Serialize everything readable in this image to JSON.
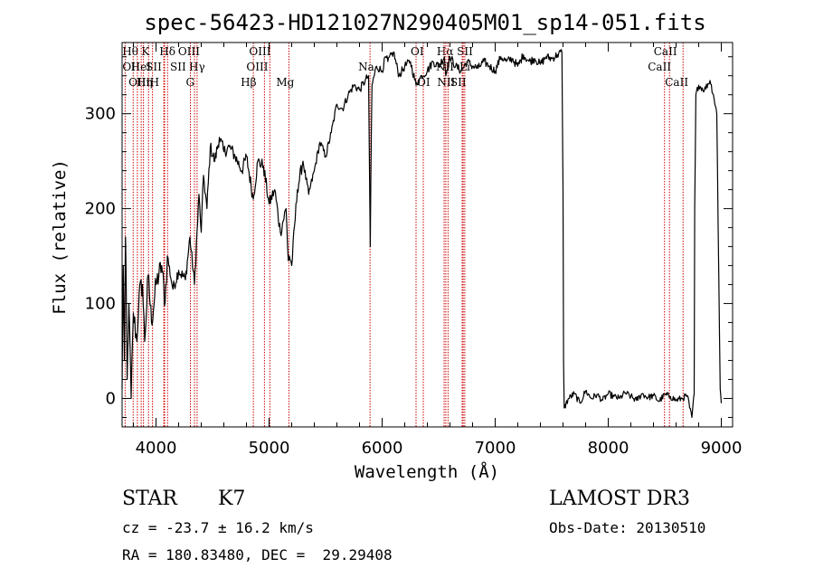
{
  "chart_data": {
    "type": "line",
    "title": "spec-56423-HD121027N290405M01_sp14-051.fits",
    "xlabel": "Wavelength (Å)",
    "ylabel": "Flux (relative)",
    "xlim": [
      3700,
      9100
    ],
    "ylim": [
      -30,
      375
    ],
    "xticks": [
      4000,
      5000,
      6000,
      7000,
      8000,
      9000
    ],
    "yticks": [
      0,
      100,
      200,
      300
    ],
    "anchors": [
      [
        3700,
        10
      ],
      [
        3710,
        140
      ],
      [
        3720,
        40
      ],
      [
        3730,
        170
      ],
      [
        3745,
        20
      ],
      [
        3760,
        100
      ],
      [
        3780,
        0
      ],
      [
        3800,
        90
      ],
      [
        3830,
        60
      ],
      [
        3850,
        110
      ],
      [
        3880,
        120
      ],
      [
        3900,
        60
      ],
      [
        3930,
        130
      ],
      [
        3960,
        80
      ],
      [
        4000,
        120
      ],
      [
        4050,
        140
      ],
      [
        4080,
        100
      ],
      [
        4100,
        150
      ],
      [
        4150,
        115
      ],
      [
        4200,
        135
      ],
      [
        4260,
        125
      ],
      [
        4300,
        170
      ],
      [
        4340,
        120
      ],
      [
        4380,
        215
      ],
      [
        4400,
        175
      ],
      [
        4420,
        235
      ],
      [
        4450,
        200
      ],
      [
        4480,
        265
      ],
      [
        4520,
        250
      ],
      [
        4560,
        275
      ],
      [
        4600,
        260
      ],
      [
        4650,
        265
      ],
      [
        4700,
        255
      ],
      [
        4760,
        240
      ],
      [
        4800,
        255
      ],
      [
        4860,
        210
      ],
      [
        4900,
        250
      ],
      [
        4950,
        245
      ],
      [
        5000,
        205
      ],
      [
        5050,
        220
      ],
      [
        5100,
        175
      ],
      [
        5150,
        200
      ],
      [
        5170,
        145
      ],
      [
        5180,
        150
      ],
      [
        5200,
        140
      ],
      [
        5250,
        220
      ],
      [
        5300,
        250
      ],
      [
        5350,
        215
      ],
      [
        5400,
        240
      ],
      [
        5450,
        270
      ],
      [
        5500,
        255
      ],
      [
        5550,
        280
      ],
      [
        5600,
        310
      ],
      [
        5650,
        305
      ],
      [
        5700,
        320
      ],
      [
        5750,
        330
      ],
      [
        5800,
        325
      ],
      [
        5850,
        335
      ],
      [
        5880,
        340
      ],
      [
        5890,
        215
      ],
      [
        5895,
        160
      ],
      [
        5900,
        230
      ],
      [
        5910,
        330
      ],
      [
        5950,
        350
      ],
      [
        6000,
        345
      ],
      [
        6030,
        360
      ],
      [
        6050,
        355
      ],
      [
        6100,
        365
      ],
      [
        6150,
        340
      ],
      [
        6200,
        350
      ],
      [
        6250,
        355
      ],
      [
        6300,
        330
      ],
      [
        6350,
        340
      ],
      [
        6400,
        345
      ],
      [
        6450,
        355
      ],
      [
        6500,
        350
      ],
      [
        6550,
        360
      ],
      [
        6563,
        340
      ],
      [
        6600,
        360
      ],
      [
        6650,
        350
      ],
      [
        6700,
        345
      ],
      [
        6750,
        355
      ],
      [
        6800,
        350
      ],
      [
        6850,
        348
      ],
      [
        6900,
        355
      ],
      [
        6950,
        350
      ],
      [
        7000,
        345
      ],
      [
        7050,
        360
      ],
      [
        7100,
        355
      ],
      [
        7150,
        358
      ],
      [
        7200,
        350
      ],
      [
        7250,
        362
      ],
      [
        7300,
        355
      ],
      [
        7350,
        358
      ],
      [
        7400,
        352
      ],
      [
        7450,
        360
      ],
      [
        7500,
        358
      ],
      [
        7550,
        362
      ],
      [
        7590,
        365
      ],
      [
        7600,
        220
      ],
      [
        7605,
        40
      ],
      [
        7610,
        -10
      ],
      [
        7650,
        0
      ],
      [
        7700,
        5
      ],
      [
        7750,
        -5
      ],
      [
        7800,
        8
      ],
      [
        7850,
        0
      ],
      [
        7900,
        4
      ],
      [
        7950,
        -2
      ],
      [
        8000,
        5
      ],
      [
        8050,
        2
      ],
      [
        8100,
        0
      ],
      [
        8150,
        6
      ],
      [
        8200,
        2
      ],
      [
        8250,
        -2
      ],
      [
        8300,
        5
      ],
      [
        8350,
        1
      ],
      [
        8400,
        3
      ],
      [
        8450,
        -3
      ],
      [
        8500,
        4
      ],
      [
        8550,
        2
      ],
      [
        8600,
        -2
      ],
      [
        8650,
        0
      ],
      [
        8700,
        3
      ],
      [
        8720,
        -10
      ],
      [
        8740,
        -20
      ],
      [
        8760,
        5
      ],
      [
        8765,
        200
      ],
      [
        8775,
        320
      ],
      [
        8800,
        330
      ],
      [
        8850,
        325
      ],
      [
        8900,
        335
      ],
      [
        8930,
        320
      ],
      [
        8960,
        300
      ],
      [
        8990,
        10
      ],
      [
        9000,
        -5
      ]
    ],
    "spectral_lines": [
      {
        "label": "Hθ",
        "wave": 3798,
        "row": 0,
        "offset": -12
      },
      {
        "label": "OII",
        "wave": 3727,
        "row": 1,
        "offset": -3
      },
      {
        "label": "OIII",
        "wave": 3869,
        "row": 2,
        "offset": -14
      },
      {
        "label": "K",
        "wave": 3934,
        "row": 0,
        "offset": -8
      },
      {
        "label": "HeI",
        "wave": 3889,
        "row": 1,
        "offset": -14
      },
      {
        "label": "SII",
        "wave": 4069,
        "row": 1,
        "offset": -20
      },
      {
        "label": "Hη",
        "wave": 3835,
        "row": 2,
        "offset": -1
      },
      {
        "label": "H",
        "wave": 3969,
        "row": 2,
        "offset": -3
      },
      {
        "label": "Hδ",
        "wave": 4102,
        "row": 0,
        "offset": -9
      },
      {
        "label": "SII",
        "wave": 4076,
        "row": 1,
        "offset": 6
      },
      {
        "label": "OIII",
        "wave": 4363,
        "row": 0,
        "offset": -21
      },
      {
        "label": "Hγ",
        "wave": 4340,
        "row": 1,
        "offset": -6
      },
      {
        "label": "G",
        "wave": 4304,
        "row": 2,
        "offset": -5
      },
      {
        "label": "OIII",
        "wave": 4959,
        "row": 0,
        "offset": -17
      },
      {
        "label": "OIII",
        "wave": 5007,
        "row": 1,
        "offset": -26
      },
      {
        "label": "Hβ",
        "wave": 4861,
        "row": 2,
        "offset": -14
      },
      {
        "label": "Mg",
        "wave": 5175,
        "row": 2,
        "offset": -14
      },
      {
        "label": "Na",
        "wave": 5893,
        "row": 1,
        "offset": -13
      },
      {
        "label": "OI",
        "wave": 6300,
        "row": 0,
        "offset": -6
      },
      {
        "label": "OI",
        "wave": 6364,
        "row": 2,
        "offset": -7
      },
      {
        "label": "Hα",
        "wave": 6563,
        "row": 0,
        "offset": -10
      },
      {
        "label": "NII",
        "wave": 6548,
        "row": 1,
        "offset": -9
      },
      {
        "label": "NII",
        "wave": 6583,
        "row": 2,
        "offset": -12
      },
      {
        "label": "SII",
        "wave": 6717,
        "row": 0,
        "offset": -7
      },
      {
        "label": "Li",
        "wave": 6708,
        "row": 1,
        "offset": -3
      },
      {
        "label": "SII",
        "wave": 6731,
        "row": 2,
        "offset": -16
      },
      {
        "label": "CaII",
        "wave": 8498,
        "row": 0,
        "offset": -12
      },
      {
        "label": "CaII",
        "wave": 8542,
        "row": 1,
        "offset": -24
      },
      {
        "label": "CaII",
        "wave": 8662,
        "row": 2,
        "offset": -20
      }
    ]
  },
  "info": {
    "class": "STAR",
    "subclass": "K7",
    "survey": "LAMOST DR3",
    "cz": "cz = -23.7 ± 16.2 km/s",
    "obs_date": "Obs-Date: 20130510",
    "radec": "RA = 180.83480, DEC =  29.29408"
  },
  "colors": {
    "spectrum": "#000000",
    "line_marker": "#cc0000"
  }
}
